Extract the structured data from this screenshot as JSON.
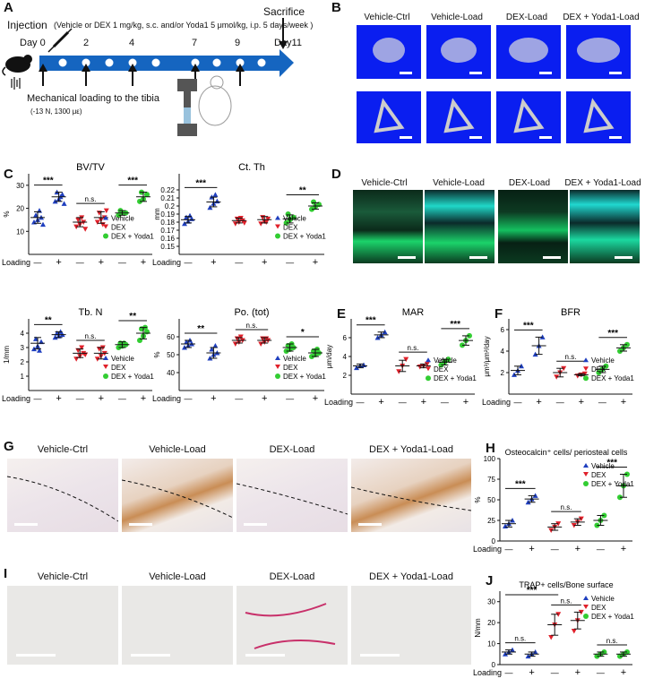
{
  "panelA": {
    "label": "A",
    "injection_title": "Injection",
    "injection_detail": "(Vehicle or DEX 1 mg/kg, s.c. and/or Yoda1 5 μmol/kg, i.p. 5 days/week )",
    "sacrifice": "Sacrifice",
    "day0": "Day 0",
    "days": [
      "2",
      "4",
      "7",
      "9"
    ],
    "day11": "Day11",
    "mech1": "Mechanical loading to the tibia",
    "mech2": "(-13 N, 1300 με)"
  },
  "panelB": {
    "label": "B",
    "titles": [
      "Vehicle-Ctrl",
      "Vehicle-Load",
      "DEX-Load",
      "DEX + Yoda1-Load"
    ]
  },
  "panelD": {
    "label": "D",
    "titles": [
      "Vehicle-Ctrl",
      "Vehicle-Load",
      "DEX-Load",
      "DEX + Yoda1-Load"
    ]
  },
  "panelG": {
    "label": "G",
    "titles": [
      "Vehicle-Ctrl",
      "Vehicle-Load",
      "DEX-Load",
      "DEX + Yoda1-Load"
    ]
  },
  "panelI": {
    "label": "I",
    "titles": [
      "Vehicle-Ctrl",
      "Vehicle-Load",
      "DEX-Load",
      "DEX + Yoda1-Load"
    ]
  },
  "legend": {
    "vehicle": "Vehicle",
    "dex": "DEX",
    "dexyoda": "DEX + Yoda1"
  },
  "loading": {
    "label": "Loading",
    "minus": "—",
    "plus": "+"
  },
  "colors": {
    "vehicle": "#1f3fbf",
    "dex": "#e0202a",
    "dexyoda": "#32cd32",
    "timeline": "#1565c0"
  },
  "chart_data": [
    {
      "id": "C1",
      "panel": "C",
      "type": "scatter",
      "title": "BV/TV",
      "ylabel": "%",
      "ylim": [
        0,
        35
      ],
      "yticks": [
        10,
        20,
        30
      ],
      "groups": [
        {
          "series": "Vehicle",
          "loading": "-",
          "mean": 16,
          "sd": 2.5,
          "points": [
            14,
            15,
            16,
            17,
            19,
            13
          ]
        },
        {
          "series": "Vehicle",
          "loading": "+",
          "mean": 25,
          "sd": 2,
          "points": [
            23,
            24,
            26,
            27,
            25,
            22
          ]
        },
        {
          "series": "DEX",
          "loading": "-",
          "mean": 14,
          "sd": 2,
          "points": [
            12,
            13,
            14,
            15,
            16,
            11
          ]
        },
        {
          "series": "DEX",
          "loading": "+",
          "mean": 16,
          "sd": 2.5,
          "points": [
            14,
            15,
            16,
            18,
            13,
            19
          ]
        },
        {
          "series": "DEX + Yoda1",
          "loading": "-",
          "mean": 18,
          "sd": 1,
          "points": [
            17,
            18,
            18,
            19
          ]
        },
        {
          "series": "DEX + Yoda1",
          "loading": "+",
          "mean": 25,
          "sd": 2,
          "points": [
            23,
            24,
            26,
            27
          ]
        }
      ],
      "sig": [
        {
          "pair": [
            0,
            1
          ],
          "text": "***"
        },
        {
          "pair": [
            2,
            3
          ],
          "text": "n.s."
        },
        {
          "pair": [
            4,
            5
          ],
          "text": "***"
        }
      ]
    },
    {
      "id": "C2",
      "panel": "C",
      "type": "scatter",
      "title": "Ct. Th",
      "ylabel": "mm",
      "ylim": [
        0.14,
        0.24
      ],
      "yticks": [
        0.15,
        0.16,
        0.17,
        0.18,
        0.19,
        0.2,
        0.21,
        0.22
      ],
      "groups": [
        {
          "series": "Vehicle",
          "loading": "-",
          "mean": 0.183,
          "sd": 0.004,
          "points": [
            0.178,
            0.181,
            0.184,
            0.186,
            0.188
          ]
        },
        {
          "series": "Vehicle",
          "loading": "+",
          "mean": 0.205,
          "sd": 0.006,
          "points": [
            0.198,
            0.203,
            0.206,
            0.211,
            0.214
          ]
        },
        {
          "series": "DEX",
          "loading": "-",
          "mean": 0.182,
          "sd": 0.003,
          "points": [
            0.178,
            0.18,
            0.182,
            0.184,
            0.185,
            0.179
          ]
        },
        {
          "series": "DEX",
          "loading": "+",
          "mean": 0.183,
          "sd": 0.004,
          "points": [
            0.178,
            0.181,
            0.184,
            0.186,
            0.18
          ]
        },
        {
          "series": "DEX + Yoda1",
          "loading": "-",
          "mean": 0.184,
          "sd": 0.005,
          "points": [
            0.179,
            0.183,
            0.186,
            0.19
          ]
        },
        {
          "series": "DEX + Yoda1",
          "loading": "+",
          "mean": 0.2,
          "sd": 0.004,
          "points": [
            0.196,
            0.199,
            0.202,
            0.205
          ]
        }
      ],
      "sig": [
        {
          "pair": [
            0,
            1
          ],
          "text": "***"
        },
        {
          "pair": [
            4,
            5
          ],
          "text": "**"
        }
      ]
    },
    {
      "id": "C3",
      "panel": "C",
      "type": "scatter",
      "title": "Tb. N",
      "ylabel": "1/mm",
      "ylim": [
        0,
        5
      ],
      "yticks": [
        1,
        2,
        3,
        4
      ],
      "groups": [
        {
          "series": "Vehicle",
          "loading": "-",
          "mean": 3.3,
          "sd": 0.4,
          "points": [
            2.9,
            3.1,
            3.4,
            3.6,
            2.8
          ]
        },
        {
          "series": "Vehicle",
          "loading": "+",
          "mean": 3.9,
          "sd": 0.2,
          "points": [
            3.7,
            3.8,
            3.9,
            4.0,
            4.1
          ]
        },
        {
          "series": "DEX",
          "loading": "-",
          "mean": 2.6,
          "sd": 0.3,
          "points": [
            2.2,
            2.4,
            2.6,
            2.8,
            3.0,
            2.5
          ]
        },
        {
          "series": "DEX",
          "loading": "+",
          "mean": 2.6,
          "sd": 0.4,
          "points": [
            2.2,
            2.4,
            2.6,
            2.9,
            3.0
          ]
        },
        {
          "series": "DEX + Yoda1",
          "loading": "-",
          "mean": 3.2,
          "sd": 0.2,
          "points": [
            3.0,
            3.1,
            3.2,
            3.3,
            3.3
          ]
        },
        {
          "series": "DEX + Yoda1",
          "loading": "+",
          "mean": 4.0,
          "sd": 0.4,
          "points": [
            3.5,
            3.8,
            4.1,
            4.3,
            4.4
          ]
        }
      ],
      "sig": [
        {
          "pair": [
            0,
            1
          ],
          "text": "**"
        },
        {
          "pair": [
            2,
            3
          ],
          "text": "n.s."
        },
        {
          "pair": [
            4,
            5
          ],
          "text": "**"
        }
      ]
    },
    {
      "id": "C4",
      "panel": "C",
      "type": "scatter",
      "title": "Po. (tot)",
      "ylabel": "%",
      "ylim": [
        30,
        70
      ],
      "yticks": [
        40,
        50,
        60
      ],
      "groups": [
        {
          "series": "Vehicle",
          "loading": "-",
          "mean": 56,
          "sd": 2,
          "points": [
            54,
            55,
            56,
            57,
            58
          ]
        },
        {
          "series": "Vehicle",
          "loading": "+",
          "mean": 51,
          "sd": 3,
          "points": [
            48,
            50,
            51,
            53,
            55
          ]
        },
        {
          "series": "DEX",
          "loading": "-",
          "mean": 58,
          "sd": 1.5,
          "points": [
            56,
            57,
            58,
            59,
            60
          ]
        },
        {
          "series": "DEX",
          "loading": "+",
          "mean": 58,
          "sd": 1.5,
          "points": [
            56,
            57,
            58,
            59,
            59
          ]
        },
        {
          "series": "DEX + Yoda1",
          "loading": "-",
          "mean": 54,
          "sd": 2,
          "points": [
            52,
            53,
            54,
            55,
            56
          ]
        },
        {
          "series": "DEX + Yoda1",
          "loading": "+",
          "mean": 51,
          "sd": 2,
          "points": [
            49,
            50,
            51,
            52,
            53
          ]
        }
      ],
      "sig": [
        {
          "pair": [
            0,
            1
          ],
          "text": "**"
        },
        {
          "pair": [
            2,
            3
          ],
          "text": "n.s."
        },
        {
          "pair": [
            4,
            5
          ],
          "text": "*"
        }
      ]
    },
    {
      "id": "E",
      "panel": "E",
      "type": "scatter",
      "title": "MAR",
      "ylabel": "μm/day",
      "ylim": [
        0,
        8
      ],
      "yticks": [
        2,
        4,
        6
      ],
      "groups": [
        {
          "series": "Vehicle",
          "loading": "-",
          "mean": 3.0,
          "sd": 0.2,
          "points": [
            2.8,
            3.0,
            3.1
          ]
        },
        {
          "series": "Vehicle",
          "loading": "+",
          "mean": 6.3,
          "sd": 0.3,
          "points": [
            6.0,
            6.3,
            6.6
          ]
        },
        {
          "series": "DEX",
          "loading": "-",
          "mean": 3.0,
          "sd": 0.6,
          "points": [
            2.4,
            3.0,
            3.7
          ]
        },
        {
          "series": "DEX",
          "loading": "+",
          "mean": 3.0,
          "sd": 0.2,
          "points": [
            2.9,
            3.0,
            3.2
          ]
        },
        {
          "series": "DEX + Yoda1",
          "loading": "-",
          "mean": 3.4,
          "sd": 0.3,
          "points": [
            3.1,
            3.4,
            3.7
          ]
        },
        {
          "series": "DEX + Yoda1",
          "loading": "+",
          "mean": 5.7,
          "sd": 0.5,
          "points": [
            5.2,
            5.7,
            6.2
          ]
        }
      ],
      "sig": [
        {
          "pair": [
            0,
            1
          ],
          "text": "***"
        },
        {
          "pair": [
            2,
            3
          ],
          "text": "n.s."
        },
        {
          "pair": [
            4,
            5
          ],
          "text": "***"
        }
      ]
    },
    {
      "id": "F",
      "panel": "F",
      "type": "scatter",
      "title": "BFR",
      "ylabel": "μm³/μm²/day",
      "ylim": [
        0,
        7
      ],
      "yticks": [
        2,
        4,
        6
      ],
      "groups": [
        {
          "series": "Vehicle",
          "loading": "-",
          "mean": 2.2,
          "sd": 0.4,
          "points": [
            1.8,
            2.2,
            2.6
          ]
        },
        {
          "series": "Vehicle",
          "loading": "+",
          "mean": 4.5,
          "sd": 0.8,
          "points": [
            3.7,
            4.5,
            5.3
          ]
        },
        {
          "series": "DEX",
          "loading": "-",
          "mean": 2.0,
          "sd": 0.4,
          "points": [
            1.6,
            2.0,
            2.4
          ]
        },
        {
          "series": "DEX",
          "loading": "+",
          "mean": 1.8,
          "sd": 0.1,
          "points": [
            1.7,
            1.8,
            1.9
          ]
        },
        {
          "series": "DEX + Yoda1",
          "loading": "-",
          "mean": 2.3,
          "sd": 0.3,
          "points": [
            2.0,
            2.3,
            2.6
          ]
        },
        {
          "series": "DEX + Yoda1",
          "loading": "+",
          "mean": 4.3,
          "sd": 0.3,
          "points": [
            4.0,
            4.3,
            4.6
          ]
        }
      ],
      "sig": [
        {
          "pair": [
            0,
            1
          ],
          "text": "***"
        },
        {
          "pair": [
            2,
            3
          ],
          "text": "n.s."
        },
        {
          "pair": [
            4,
            5
          ],
          "text": "***"
        }
      ]
    },
    {
      "id": "H",
      "panel": "H",
      "type": "scatter",
      "title": "Osteocalcin⁺ cells/ periosteal cells",
      "ylabel": "%",
      "ylim": [
        0,
        100
      ],
      "yticks": [
        0,
        25,
        50,
        75,
        100
      ],
      "groups": [
        {
          "series": "Vehicle",
          "loading": "-",
          "mean": 21,
          "sd": 4,
          "points": [
            18,
            21,
            25
          ]
        },
        {
          "series": "Vehicle",
          "loading": "+",
          "mean": 51,
          "sd": 4,
          "points": [
            47,
            51,
            55
          ]
        },
        {
          "series": "DEX",
          "loading": "-",
          "mean": 17,
          "sd": 4,
          "points": [
            13,
            17,
            21
          ]
        },
        {
          "series": "DEX",
          "loading": "+",
          "mean": 23,
          "sd": 4,
          "points": [
            19,
            23,
            27
          ]
        },
        {
          "series": "DEX + Yoda1",
          "loading": "-",
          "mean": 25,
          "sd": 6,
          "points": [
            19,
            25,
            31
          ]
        },
        {
          "series": "DEX + Yoda1",
          "loading": "+",
          "mean": 67,
          "sd": 14,
          "points": [
            53,
            67,
            81
          ]
        }
      ],
      "sig": [
        {
          "pair": [
            0,
            1
          ],
          "text": "***"
        },
        {
          "pair": [
            2,
            3
          ],
          "text": "n.s."
        },
        {
          "pair": [
            4,
            5
          ],
          "text": "***"
        }
      ]
    },
    {
      "id": "J",
      "panel": "J",
      "type": "scatter",
      "title": "TRAP+ cells/Bone surface",
      "ylabel": "N/mm",
      "ylim": [
        0,
        35
      ],
      "yticks": [
        0,
        10,
        20,
        30
      ],
      "groups": [
        {
          "series": "Vehicle",
          "loading": "-",
          "mean": 6,
          "sd": 1,
          "points": [
            5,
            6,
            7
          ]
        },
        {
          "series": "Vehicle",
          "loading": "+",
          "mean": 5,
          "sd": 1,
          "points": [
            4,
            5,
            6
          ]
        },
        {
          "series": "DEX",
          "loading": "-",
          "mean": 19,
          "sd": 5,
          "points": [
            13,
            19,
            24
          ]
        },
        {
          "series": "DEX",
          "loading": "+",
          "mean": 21,
          "sd": 4,
          "points": [
            16,
            21,
            25
          ]
        },
        {
          "series": "DEX + Yoda1",
          "loading": "-",
          "mean": 5,
          "sd": 1,
          "points": [
            4,
            5,
            6
          ]
        },
        {
          "series": "DEX + Yoda1",
          "loading": "+",
          "mean": 5,
          "sd": 1,
          "points": [
            4,
            5,
            6
          ]
        }
      ],
      "sig": [
        {
          "pair": [
            0,
            1
          ],
          "text": "n.s."
        },
        {
          "pair": [
            2,
            3
          ],
          "text": "n.s."
        },
        {
          "pair": [
            0,
            2
          ],
          "text": "***"
        },
        {
          "pair": [
            4,
            5
          ],
          "text": "n.s."
        }
      ]
    }
  ]
}
